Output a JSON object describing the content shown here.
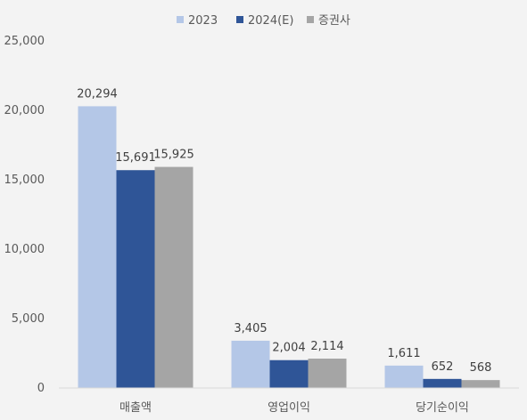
{
  "chart_data": {
    "type": "bar",
    "title": "",
    "xlabel": "",
    "ylabel": "",
    "categories": [
      "매출액",
      "영업이익",
      "당기순이익"
    ],
    "series": [
      {
        "name": "2023",
        "values": [
          20294,
          3405,
          1611
        ],
        "color": "#b4c7e7"
      },
      {
        "name": "2024(E)",
        "values": [
          15691,
          2004,
          652
        ],
        "color": "#2f5597"
      },
      {
        "name": "증권사",
        "values": [
          15925,
          2114,
          568
        ],
        "color": "#a5a5a5"
      }
    ],
    "data_labels": [
      [
        "20,294",
        "3,405",
        "1,611"
      ],
      [
        "15,691",
        "2,004",
        "652"
      ],
      [
        "15,925",
        "2,114",
        "568"
      ]
    ],
    "ylim": [
      0,
      25000
    ],
    "yticks": [
      0,
      5000,
      10000,
      15000,
      20000,
      25000
    ],
    "ytick_labels": [
      "0",
      "5,000",
      "10,000",
      "15,000",
      "20,000",
      "25,000"
    ],
    "grid": false,
    "legend_position": "top"
  }
}
